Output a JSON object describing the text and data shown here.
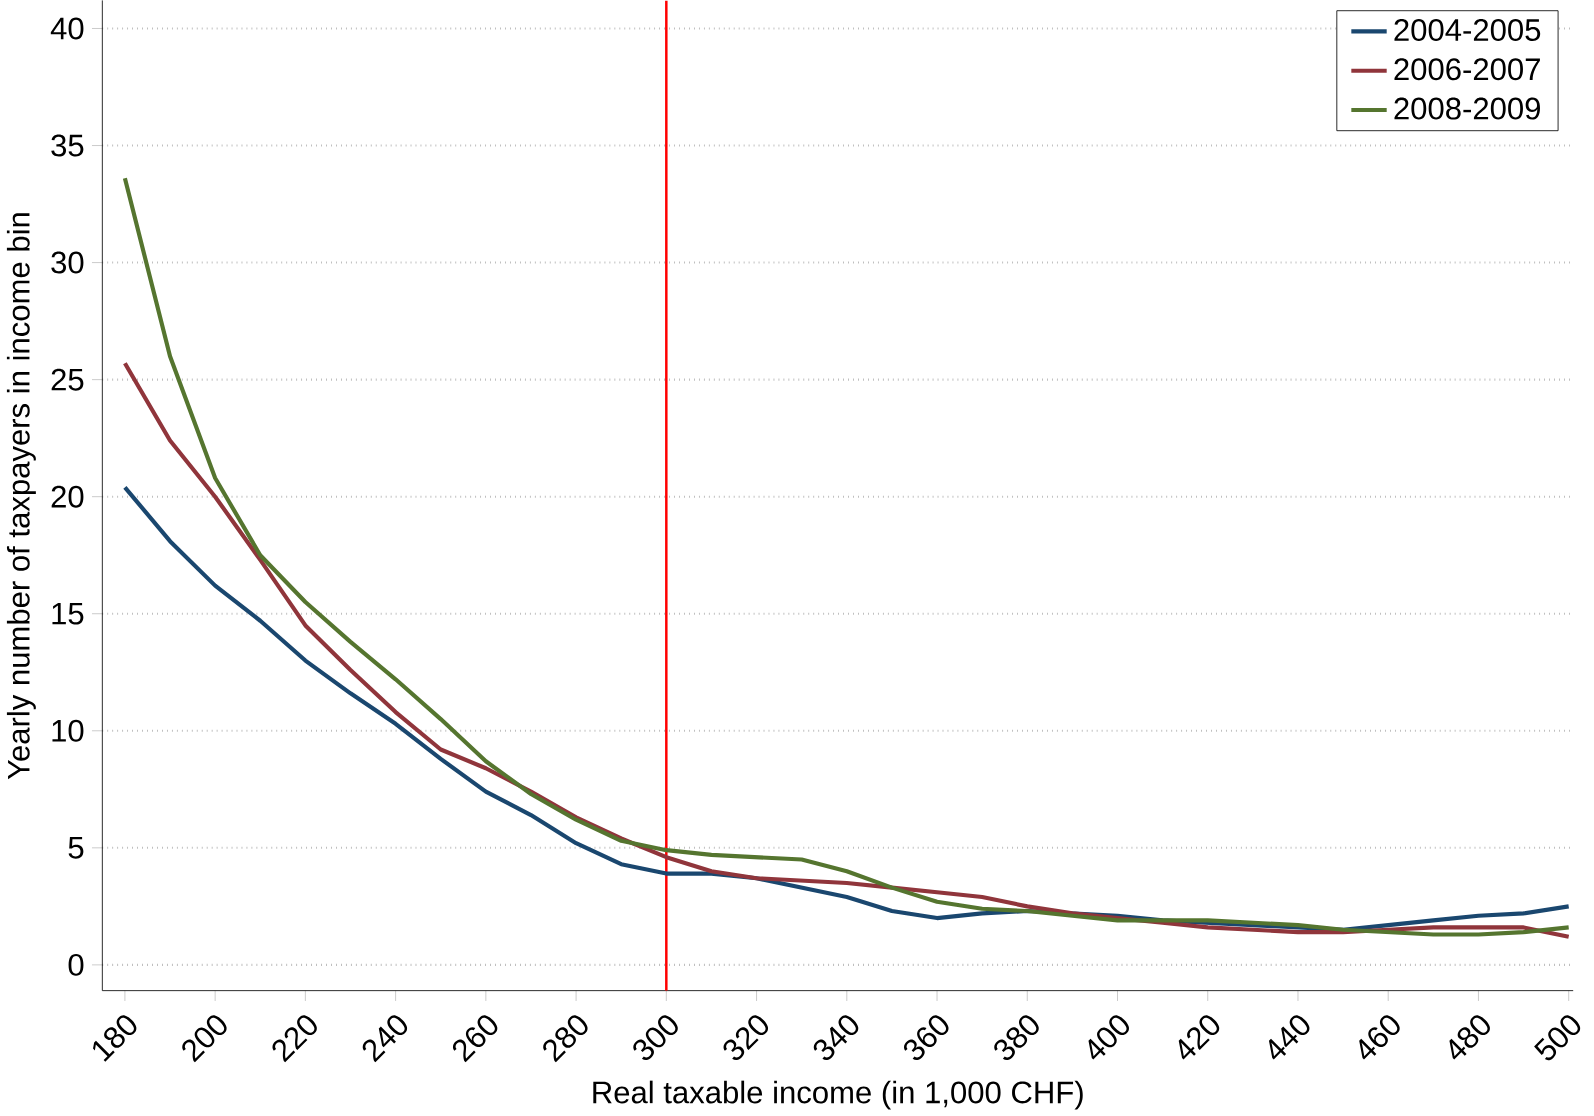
{
  "chart_data": {
    "type": "line",
    "xlabel": "Real taxable income (in 1,000 CHF)",
    "ylabel": "Yearly number of taxpayers in income bin",
    "x": [
      180,
      190,
      200,
      210,
      220,
      230,
      240,
      250,
      260,
      270,
      280,
      290,
      300,
      310,
      320,
      330,
      340,
      350,
      360,
      370,
      380,
      390,
      400,
      410,
      420,
      430,
      440,
      450,
      460,
      470,
      480,
      490,
      500
    ],
    "series": [
      {
        "name": "2004-2005",
        "color": "#1a476f",
        "values": [
          20.4,
          18.1,
          16.2,
          14.7,
          13.0,
          11.6,
          10.3,
          8.8,
          7.4,
          6.4,
          5.2,
          4.3,
          3.9,
          3.9,
          3.7,
          3.3,
          2.9,
          2.3,
          2.0,
          2.2,
          2.3,
          2.2,
          2.1,
          1.9,
          1.8,
          1.7,
          1.6,
          1.5,
          1.7,
          1.9,
          2.1,
          2.2,
          2.5
        ]
      },
      {
        "name": "2006-2007",
        "color": "#90353b",
        "values": [
          25.7,
          22.4,
          20.0,
          17.3,
          14.5,
          12.6,
          10.8,
          9.2,
          8.4,
          7.4,
          6.3,
          5.4,
          4.6,
          4.0,
          3.7,
          3.6,
          3.5,
          3.3,
          3.1,
          2.9,
          2.5,
          2.2,
          2.0,
          1.8,
          1.6,
          1.5,
          1.4,
          1.4,
          1.5,
          1.6,
          1.6,
          1.6,
          1.2
        ]
      },
      {
        "name": "2008-2009",
        "color": "#55752f",
        "values": [
          33.6,
          26.0,
          20.8,
          17.5,
          15.5,
          13.8,
          12.2,
          10.5,
          8.7,
          7.3,
          6.2,
          5.3,
          4.9,
          4.7,
          4.6,
          4.5,
          4.0,
          3.3,
          2.7,
          2.4,
          2.3,
          2.1,
          1.9,
          1.9,
          1.9,
          1.8,
          1.7,
          1.5,
          1.4,
          1.3,
          1.3,
          1.4,
          1.6
        ]
      }
    ],
    "xlim": [
      175,
      501
    ],
    "ylim": [
      -1.1,
      41.2
    ],
    "xticks": [
      180,
      200,
      220,
      240,
      260,
      280,
      300,
      320,
      340,
      360,
      380,
      400,
      420,
      440,
      460,
      480,
      500
    ],
    "yticks": [
      0,
      5,
      10,
      15,
      20,
      25,
      30,
      35,
      40
    ],
    "grid": "y",
    "legend": "top right",
    "ref_lines": [
      {
        "axis": "x",
        "value": 300,
        "color": "#ff0000"
      }
    ]
  }
}
